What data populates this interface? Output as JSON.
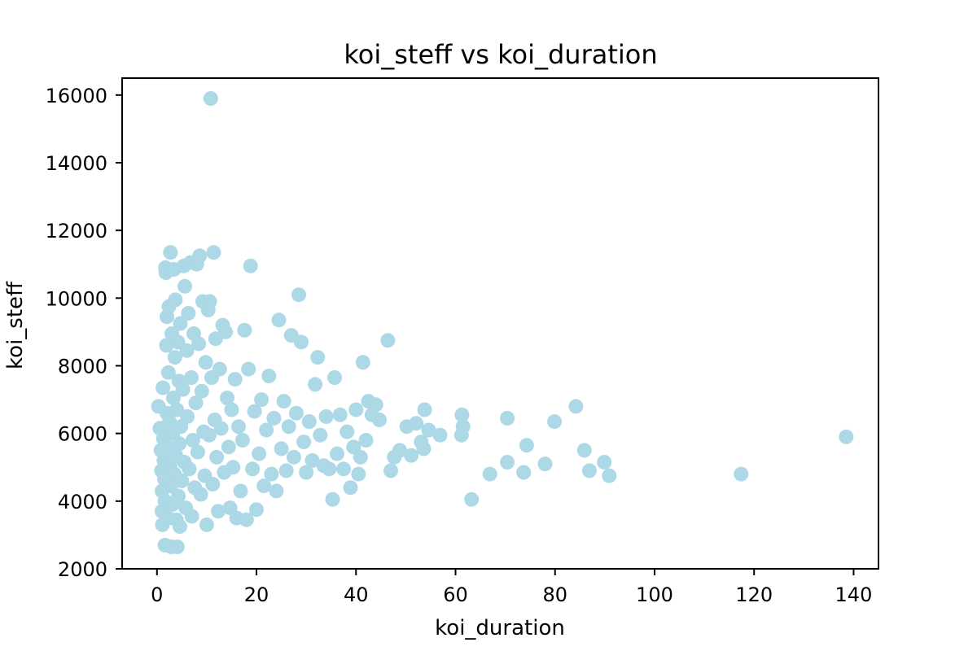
{
  "chart_data": {
    "type": "scatter",
    "title": "koi_steff vs koi_duration",
    "xlabel": "koi_duration",
    "ylabel": "koi_steff",
    "xlim": [
      -7,
      145
    ],
    "ylim": [
      2000,
      16500
    ],
    "x_ticks": [
      0,
      20,
      40,
      60,
      80,
      100,
      120,
      140
    ],
    "y_ticks": [
      2000,
      4000,
      6000,
      8000,
      10000,
      12000,
      14000,
      16000
    ],
    "marker_color": "#add8e6",
    "grid": false,
    "series": [
      {
        "points": [
          [
            0.3,
            6800
          ],
          [
            0.6,
            6150
          ],
          [
            0.8,
            5500
          ],
          [
            0.9,
            4900
          ],
          [
            1.0,
            4300
          ],
          [
            1.0,
            3700
          ],
          [
            1.1,
            3300
          ],
          [
            1.2,
            7350
          ],
          [
            1.3,
            5850
          ],
          [
            1.4,
            5200
          ],
          [
            1.5,
            4650
          ],
          [
            1.6,
            4000
          ],
          [
            1.6,
            2700
          ],
          [
            1.7,
            10900
          ],
          [
            1.8,
            10750
          ],
          [
            1.9,
            8600
          ],
          [
            2.0,
            9450
          ],
          [
            2.0,
            6600
          ],
          [
            2.1,
            5600
          ],
          [
            2.2,
            3500
          ],
          [
            2.3,
            7800
          ],
          [
            2.4,
            9750
          ],
          [
            2.5,
            6350
          ],
          [
            2.6,
            5050
          ],
          [
            2.7,
            11350
          ],
          [
            2.8,
            4450
          ],
          [
            2.9,
            2650
          ],
          [
            3.0,
            8950
          ],
          [
            3.1,
            3900
          ],
          [
            3.2,
            6000
          ],
          [
            3.3,
            7050
          ],
          [
            3.4,
            10850
          ],
          [
            3.5,
            4800
          ],
          [
            3.6,
            8250
          ],
          [
            3.7,
            9950
          ],
          [
            3.8,
            5350
          ],
          [
            3.9,
            3450
          ],
          [
            4.0,
            6700
          ],
          [
            4.1,
            2650
          ],
          [
            4.2,
            8700
          ],
          [
            4.3,
            4150
          ],
          [
            4.4,
            7550
          ],
          [
            4.5,
            5700
          ],
          [
            4.6,
            3250
          ],
          [
            4.7,
            9250
          ],
          [
            4.8,
            6200
          ],
          [
            5.0,
            4600
          ],
          [
            5.2,
            7300
          ],
          [
            5.4,
            10950
          ],
          [
            5.5,
            5150
          ],
          [
            5.6,
            10350
          ],
          [
            5.8,
            3800
          ],
          [
            6.0,
            8450
          ],
          [
            6.1,
            6500
          ],
          [
            6.3,
            9550
          ],
          [
            6.5,
            4950
          ],
          [
            6.7,
            11050
          ],
          [
            6.9,
            7650
          ],
          [
            7.0,
            3550
          ],
          [
            7.2,
            5800
          ],
          [
            7.4,
            8950
          ],
          [
            7.6,
            4400
          ],
          [
            7.8,
            6900
          ],
          [
            8.0,
            11000
          ],
          [
            8.2,
            5450
          ],
          [
            8.4,
            8650
          ],
          [
            8.6,
            11250
          ],
          [
            8.8,
            4200
          ],
          [
            9.0,
            7250
          ],
          [
            9.2,
            9900
          ],
          [
            9.4,
            6050
          ],
          [
            9.6,
            4750
          ],
          [
            9.8,
            8100
          ],
          [
            10.0,
            3300
          ],
          [
            10.3,
            9650
          ],
          [
            10.5,
            5950
          ],
          [
            10.6,
            9900
          ],
          [
            10.8,
            15900
          ],
          [
            11.0,
            7650
          ],
          [
            11.2,
            4500
          ],
          [
            11.4,
            11350
          ],
          [
            11.6,
            6400
          ],
          [
            11.8,
            8800
          ],
          [
            12.0,
            5300
          ],
          [
            12.3,
            3700
          ],
          [
            12.6,
            7900
          ],
          [
            12.9,
            6150
          ],
          [
            13.2,
            9200
          ],
          [
            13.5,
            4850
          ],
          [
            13.8,
            9000
          ],
          [
            14.1,
            7050
          ],
          [
            14.4,
            5600
          ],
          [
            14.7,
            3800
          ],
          [
            15.0,
            6700
          ],
          [
            15.3,
            5000
          ],
          [
            15.7,
            7600
          ],
          [
            16.0,
            3500
          ],
          [
            16.4,
            6200
          ],
          [
            16.8,
            4300
          ],
          [
            17.2,
            5800
          ],
          [
            17.6,
            9050
          ],
          [
            18.0,
            3450
          ],
          [
            18.4,
            7900
          ],
          [
            18.8,
            10950
          ],
          [
            19.2,
            4950
          ],
          [
            19.6,
            6650
          ],
          [
            20.0,
            3750
          ],
          [
            20.5,
            5400
          ],
          [
            21.0,
            7000
          ],
          [
            21.5,
            4450
          ],
          [
            22.0,
            6100
          ],
          [
            22.5,
            7700
          ],
          [
            23.0,
            4800
          ],
          [
            23.5,
            6450
          ],
          [
            24.0,
            4300
          ],
          [
            24.5,
            9350
          ],
          [
            25.0,
            5550
          ],
          [
            25.5,
            6950
          ],
          [
            26.0,
            4900
          ],
          [
            26.5,
            6200
          ],
          [
            27.0,
            8900
          ],
          [
            27.5,
            5300
          ],
          [
            28.0,
            6600
          ],
          [
            28.5,
            10100
          ],
          [
            29.0,
            8700
          ],
          [
            29.5,
            5750
          ],
          [
            30.0,
            4850
          ],
          [
            30.6,
            6350
          ],
          [
            31.2,
            5200
          ],
          [
            31.8,
            7450
          ],
          [
            32.3,
            8250
          ],
          [
            32.8,
            5950
          ],
          [
            33.5,
            5050
          ],
          [
            34.0,
            6500
          ],
          [
            34.6,
            4950
          ],
          [
            35.3,
            4050
          ],
          [
            35.7,
            7650
          ],
          [
            36.2,
            5400
          ],
          [
            36.8,
            6550
          ],
          [
            37.5,
            4950
          ],
          [
            38.2,
            6050
          ],
          [
            38.9,
            4400
          ],
          [
            39.5,
            5600
          ],
          [
            40.0,
            6700
          ],
          [
            40.5,
            4800
          ],
          [
            40.9,
            5300
          ],
          [
            41.4,
            8100
          ],
          [
            42.0,
            5800
          ],
          [
            42.5,
            6950
          ],
          [
            43.2,
            6550
          ],
          [
            44.0,
            6850
          ],
          [
            44.7,
            6400
          ],
          [
            46.4,
            8750
          ],
          [
            47.0,
            4900
          ],
          [
            47.7,
            5300
          ],
          [
            48.8,
            5500
          ],
          [
            50.2,
            6200
          ],
          [
            51.1,
            5350
          ],
          [
            52.1,
            6300
          ],
          [
            53.1,
            5750
          ],
          [
            53.6,
            5550
          ],
          [
            53.8,
            6700
          ],
          [
            54.6,
            6100
          ],
          [
            56.9,
            5950
          ],
          [
            61.3,
            6550
          ],
          [
            61.2,
            5950
          ],
          [
            61.5,
            6200
          ],
          [
            63.2,
            4050
          ],
          [
            66.9,
            4800
          ],
          [
            70.4,
            6450
          ],
          [
            70.4,
            5150
          ],
          [
            73.7,
            4850
          ],
          [
            74.3,
            5650
          ],
          [
            78.0,
            5100
          ],
          [
            79.9,
            6350
          ],
          [
            84.2,
            6800
          ],
          [
            85.9,
            5500
          ],
          [
            86.9,
            4900
          ],
          [
            89.9,
            5150
          ],
          [
            90.9,
            4750
          ],
          [
            117.4,
            4800
          ],
          [
            138.5,
            5900
          ]
        ]
      }
    ]
  }
}
